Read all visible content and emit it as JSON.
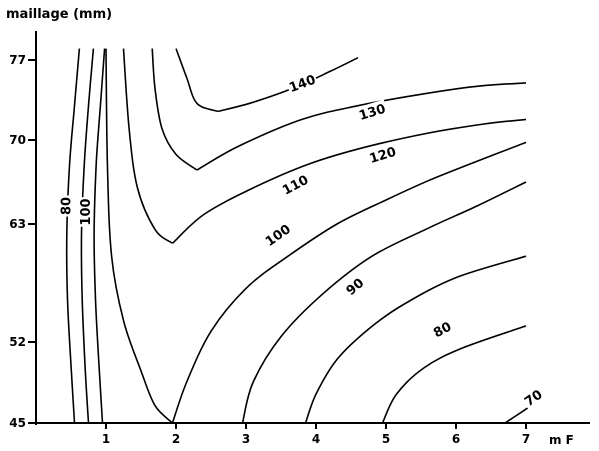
{
  "chart_data": {
    "type": "line",
    "title": "",
    "xlabel": "m F",
    "ylabel": "maillage (mm)",
    "xlim": [
      0,
      7.6
    ],
    "ylim": [
      45,
      79
    ],
    "x_ticks": [
      {
        "value": 1,
        "label": "1"
      },
      {
        "value": 2,
        "label": "2"
      },
      {
        "value": 3,
        "label": "3"
      },
      {
        "value": 4,
        "label": "4"
      },
      {
        "value": 5,
        "label": "5"
      },
      {
        "value": 6,
        "label": "6"
      },
      {
        "value": 7,
        "label": "7"
      }
    ],
    "y_ticks": [
      {
        "value": 45,
        "label": "45"
      },
      {
        "value": 52,
        "label": "52"
      },
      {
        "value": 63,
        "label": "63"
      },
      {
        "value": 70,
        "label": "70"
      },
      {
        "value": 77,
        "label": "77"
      }
    ],
    "grid": false,
    "contours": [
      {
        "level": "80",
        "label": "80",
        "points": [
          [
            0.55,
            45.0
          ],
          [
            0.5,
            50.0
          ],
          [
            0.45,
            56.0
          ],
          [
            0.44,
            62.0
          ],
          [
            0.48,
            68.0
          ],
          [
            0.55,
            73.0
          ],
          [
            0.62,
            78.0
          ]
        ],
        "label_at": [
          0.42,
          64.5
        ],
        "label_rotate": -90
      },
      {
        "level": "80",
        "label": "",
        "points": [
          [
            0.75,
            45.0
          ],
          [
            0.7,
            50.0
          ],
          [
            0.66,
            56.0
          ],
          [
            0.65,
            62.0
          ],
          [
            0.69,
            68.0
          ],
          [
            0.75,
            73.0
          ],
          [
            0.82,
            78.0
          ]
        ]
      },
      {
        "level": "100",
        "label": "100",
        "points": [
          [
            0.95,
            45.0
          ],
          [
            0.9,
            50.0
          ],
          [
            0.85,
            56.0
          ],
          [
            0.83,
            62.0
          ],
          [
            0.86,
            68.0
          ],
          [
            0.92,
            73.0
          ],
          [
            0.98,
            78.0
          ]
        ],
        "label_at": [
          0.7,
          64.0
        ],
        "label_rotate": -90
      },
      {
        "level": "120",
        "label": "",
        "points": [
          [
            1.95,
            61.2
          ],
          [
            1.7,
            62.5
          ],
          [
            1.45,
            66.0
          ],
          [
            1.33,
            71.0
          ],
          [
            1.25,
            78.0
          ]
        ]
      },
      {
        "level": "120",
        "label": "120",
        "points": [
          [
            1.95,
            61.2
          ],
          [
            2.4,
            63.8
          ],
          [
            3.1,
            66.0
          ],
          [
            3.9,
            68.0
          ],
          [
            4.7,
            69.4
          ],
          [
            5.6,
            70.6
          ],
          [
            6.4,
            71.4
          ],
          [
            7.0,
            71.8
          ]
        ],
        "label_at": [
          4.95,
          68.8
        ],
        "label_rotate": -17
      },
      {
        "level": "130",
        "label": "",
        "points": [
          [
            2.3,
            67.5
          ],
          [
            2.0,
            68.8
          ],
          [
            1.8,
            71.0
          ],
          [
            1.7,
            74.5
          ],
          [
            1.66,
            78.0
          ]
        ]
      },
      {
        "level": "130",
        "label": "130",
        "points": [
          [
            2.3,
            67.5
          ],
          [
            2.9,
            69.5
          ],
          [
            3.8,
            71.8
          ],
          [
            4.6,
            73.0
          ],
          [
            5.5,
            74.0
          ],
          [
            6.3,
            74.7
          ],
          [
            7.0,
            75.0
          ]
        ],
        "label_at": [
          4.8,
          72.5
        ],
        "label_rotate": -17
      },
      {
        "level": "140",
        "label": "",
        "points": [
          [
            2.6,
            72.5
          ],
          [
            2.3,
            73.2
          ],
          [
            2.15,
            75.5
          ],
          [
            2.0,
            78.0
          ]
        ]
      },
      {
        "level": "140",
        "label": "140",
        "points": [
          [
            2.6,
            72.5
          ],
          [
            3.1,
            73.3
          ],
          [
            3.7,
            74.6
          ],
          [
            4.2,
            76.0
          ],
          [
            4.6,
            77.2
          ]
        ],
        "label_at": [
          3.8,
          75.0
        ],
        "label_rotate": -20
      },
      {
        "level": "110",
        "label": "",
        "points": [
          [
            1.95,
            45.0
          ],
          [
            1.7,
            46.5
          ],
          [
            1.5,
            49.5
          ],
          [
            1.25,
            54.0
          ],
          [
            1.08,
            60.0
          ],
          [
            1.02,
            68.0
          ],
          [
            1.0,
            78.0
          ]
        ]
      },
      {
        "level": "110",
        "label": "110",
        "points": [
          [
            1.95,
            45.0
          ],
          [
            2.15,
            48.5
          ],
          [
            2.5,
            53.0
          ],
          [
            3.0,
            57.0
          ],
          [
            3.6,
            60.0
          ],
          [
            4.3,
            63.0
          ],
          [
            5.0,
            65.0
          ],
          [
            5.6,
            66.6
          ],
          [
            6.2,
            68.0
          ],
          [
            7.0,
            69.8
          ]
        ],
        "label_at": [
          3.7,
          66.3
        ],
        "label_rotate": -28
      },
      {
        "level": "100",
        "label": "100",
        "points": [
          [
            2.95,
            45.0
          ],
          [
            3.1,
            48.5
          ],
          [
            3.5,
            52.5
          ],
          [
            4.1,
            56.5
          ],
          [
            4.8,
            60.0
          ],
          [
            5.6,
            62.6
          ],
          [
            6.3,
            64.5
          ],
          [
            7.0,
            66.5
          ]
        ],
        "label_at": [
          3.45,
          62.0
        ],
        "label_rotate": -35
      },
      {
        "level": "90",
        "label": "90",
        "points": [
          [
            3.85,
            45.0
          ],
          [
            4.0,
            47.5
          ],
          [
            4.3,
            50.5
          ],
          [
            4.75,
            53.2
          ],
          [
            5.25,
            55.5
          ],
          [
            6.0,
            58.0
          ],
          [
            7.0,
            60.0
          ]
        ],
        "label_at": [
          4.55,
          57.2
        ],
        "label_rotate": -40
      },
      {
        "level": "80",
        "label": "80",
        "points": [
          [
            4.95,
            45.0
          ],
          [
            5.15,
            47.5
          ],
          [
            5.55,
            49.8
          ],
          [
            6.1,
            51.5
          ],
          [
            7.0,
            53.5
          ]
        ],
        "label_at": [
          5.8,
          53.2
        ],
        "label_rotate": -28
      },
      {
        "level": "70",
        "label": "70",
        "points": [
          [
            6.7,
            45.0
          ],
          [
            6.95,
            46.0
          ],
          [
            7.2,
            47.0
          ]
        ],
        "label_at": [
          7.1,
          47.2
        ],
        "label_rotate": -35
      }
    ]
  }
}
